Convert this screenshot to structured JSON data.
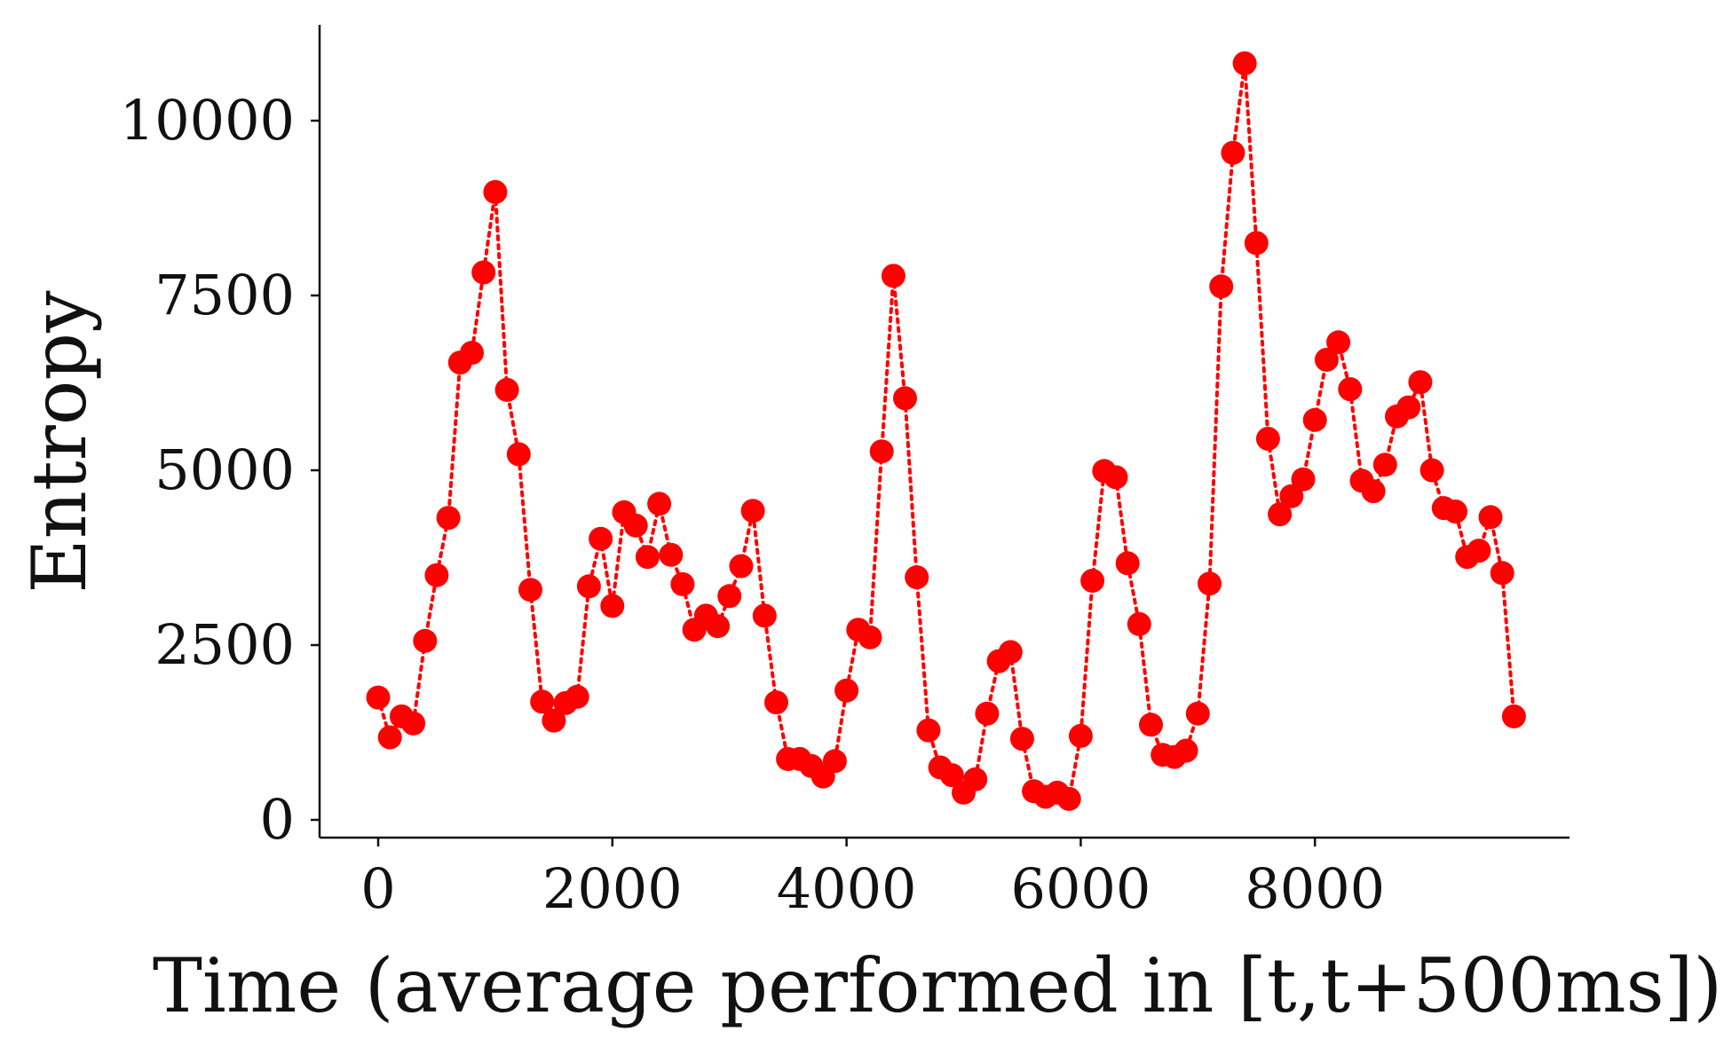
{
  "chart_data": {
    "type": "line",
    "title": "",
    "xlabel": "Time (average performed in [t,t+500ms])",
    "ylabel": "Entropy",
    "xlim": [
      -600,
      10300
    ],
    "ylim": [
      -250,
      11400
    ],
    "x_ticks": [
      0,
      2000,
      4000,
      6000,
      8000
    ],
    "x_tick_labels": [
      "0",
      "2000",
      "4000",
      "6000",
      "8000"
    ],
    "y_ticks": [
      0,
      2500,
      5000,
      7500,
      10000
    ],
    "y_tick_labels": [
      "0",
      "2500",
      "5000",
      "7500",
      "10000"
    ],
    "grid": false,
    "legend": "none",
    "colors": {
      "series": "#ff0000",
      "axis": "#111111"
    },
    "line_style": "dotted",
    "marker": "circle",
    "series": [
      {
        "x": [
          0,
          100,
          200,
          300,
          400,
          500,
          600,
          700,
          800,
          900,
          1000,
          1100,
          1200,
          1300,
          1400,
          1500,
          1600,
          1700,
          1800,
          1900,
          2000,
          2100,
          2200,
          2300,
          2400,
          2500,
          2600,
          2700,
          2800,
          2900,
          3000,
          3100,
          3200,
          3300,
          3400,
          3500,
          3600,
          3700,
          3800,
          3900,
          4000,
          4100,
          4200,
          4300,
          4400,
          4500,
          4600,
          4700,
          4800,
          4900,
          5000,
          5100,
          5200,
          5300,
          5400,
          5500,
          5600,
          5700,
          5800,
          5900,
          6000,
          6100,
          6200,
          6300,
          6400,
          6500,
          6600,
          6700,
          6800,
          6900,
          7000,
          7100,
          7200,
          7300,
          7400,
          7500,
          7600,
          7700,
          7800,
          7900,
          8000,
          8100,
          8200,
          8300,
          8400,
          8500,
          8600,
          8700,
          8800,
          8900,
          9000,
          9100,
          9200,
          9300,
          9400,
          9500,
          9600,
          9700
        ],
        "y": [
          1750,
          1180,
          1480,
          1380,
          2560,
          3500,
          4320,
          6540,
          6680,
          7830,
          8980,
          6150,
          5230,
          3290,
          1690,
          1420,
          1670,
          1760,
          3340,
          4020,
          3060,
          4400,
          4210,
          3760,
          4520,
          3790,
          3370,
          2720,
          2920,
          2770,
          3200,
          3630,
          4420,
          2920,
          1680,
          870,
          870,
          770,
          620,
          840,
          1850,
          2720,
          2610,
          5270,
          7780,
          6030,
          3470,
          1280,
          750,
          640,
          390,
          580,
          1520,
          2270,
          2400,
          1160,
          410,
          330,
          390,
          300,
          1200,
          3420,
          4990,
          4900,
          3670,
          2800,
          1360,
          930,
          900,
          990,
          1520,
          3380,
          7630,
          9540,
          10820,
          8250,
          5450,
          4370,
          4630,
          4870,
          5720,
          6580,
          6830,
          6160,
          4850,
          4700,
          5080,
          5770,
          5900,
          6260,
          5000,
          4460,
          4410,
          3760,
          3850,
          4330,
          3530,
          1480
        ]
      }
    ]
  }
}
